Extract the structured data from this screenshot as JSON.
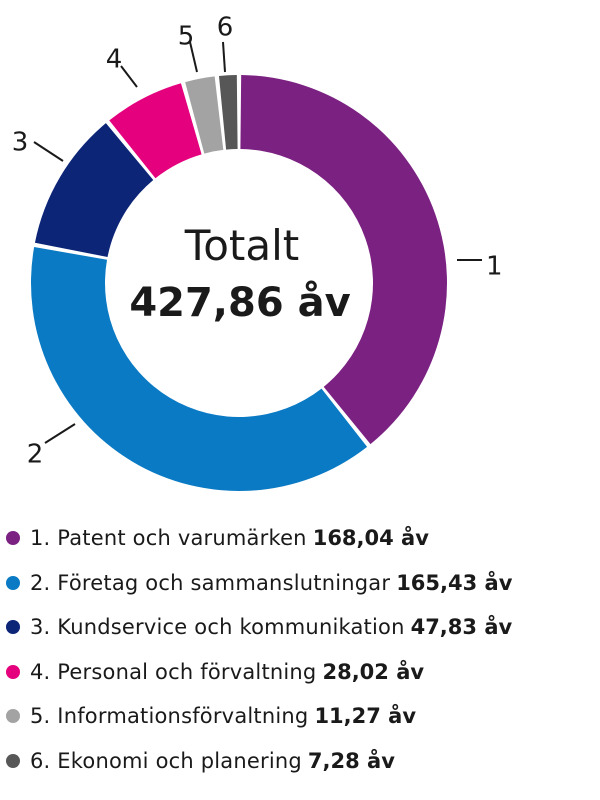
{
  "chart_data": {
    "type": "pie",
    "center": {
      "title": "Totalt",
      "total": "427,86 åv"
    },
    "slices": [
      {
        "callout": "1",
        "label": "1. Patent och varumärken",
        "value": 168.04,
        "value_text": "168,04 åv",
        "color": "#7b2182"
      },
      {
        "callout": "2",
        "label": "2. Företag och sammanslutningar",
        "value": 165.43,
        "value_text": "165,43 åv",
        "color": "#0a7ac4"
      },
      {
        "callout": "3",
        "label": "3. Kundservice och kommunikation",
        "value": 47.83,
        "value_text": "47,83 åv",
        "color": "#0c2577"
      },
      {
        "callout": "4",
        "label": "4. Personal och förvaltning",
        "value": 28.02,
        "value_text": "28,02 åv",
        "color": "#e5007e"
      },
      {
        "callout": "5",
        "label": "5. Informationsförvaltning",
        "value": 11.27,
        "value_text": "11,27 åv",
        "color": "#a3a3a3"
      },
      {
        "callout": "6",
        "label": "6. Ekonomi och planering",
        "value": 7.28,
        "value_text": "7,28 åv",
        "color": "#575757"
      }
    ]
  }
}
